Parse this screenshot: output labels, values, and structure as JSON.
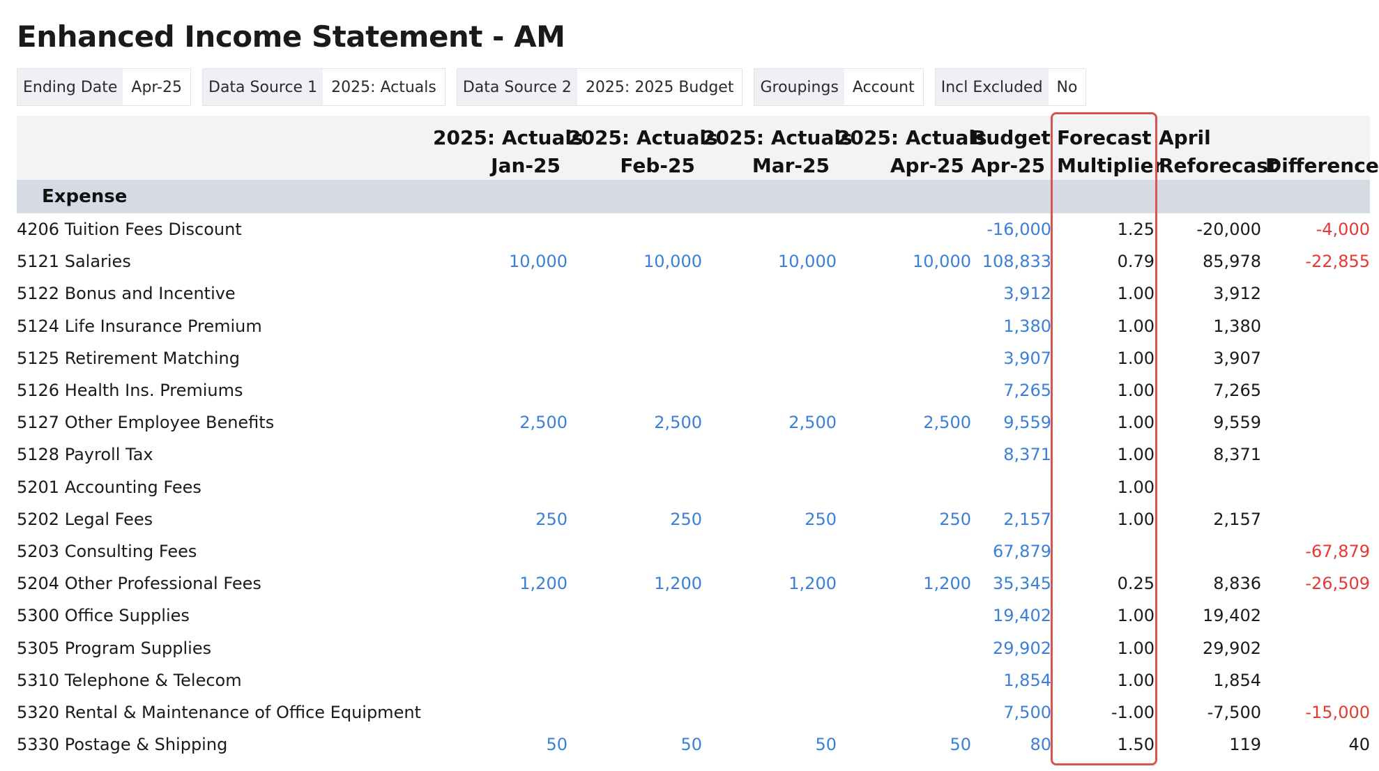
{
  "title": "Enhanced Income Statement - AM",
  "filters": [
    {
      "label": "Ending Date",
      "value": "Apr-25"
    },
    {
      "label": "Data Source 1",
      "value": "2025: Actuals"
    },
    {
      "label": "Data Source 2",
      "value": "2025: 2025 Budget"
    },
    {
      "label": "Groupings",
      "value": "Account"
    },
    {
      "label": "Incl Excluded",
      "value": "No"
    }
  ],
  "columns": [
    {
      "line1": "",
      "line2": ""
    },
    {
      "line1": "2025: Actuals",
      "line2": "Jan-25"
    },
    {
      "line1": "2025: Actuals",
      "line2": "Feb-25"
    },
    {
      "line1": "2025: Actuals",
      "line2": "Mar-25"
    },
    {
      "line1": "2025: Actuals",
      "line2": "Apr-25"
    },
    {
      "line1": "Budget",
      "line2": "Apr-25"
    },
    {
      "line1": "Forecast",
      "line2": "Multiplier"
    },
    {
      "line1": "April",
      "line2": "Reforecast"
    },
    {
      "line1": "",
      "line2": "Difference"
    }
  ],
  "group": "Expense",
  "colors": {
    "link": "#3a7fd9",
    "negative": "#e53935",
    "highlight": "#d9534f",
    "group_bg": "#d5dae3"
  },
  "rows": [
    {
      "account": "4206 Tuition Fees Discount",
      "jan": "",
      "feb": "",
      "mar": "",
      "apr": "",
      "budget": "-16,000",
      "multiplier": "1.25",
      "reforecast": "-20,000",
      "difference": "-4,000"
    },
    {
      "account": "5121 Salaries",
      "jan": "10,000",
      "feb": "10,000",
      "mar": "10,000",
      "apr": "10,000",
      "budget": "108,833",
      "multiplier": "0.79",
      "reforecast": "85,978",
      "difference": "-22,855"
    },
    {
      "account": "5122 Bonus and Incentive",
      "jan": "",
      "feb": "",
      "mar": "",
      "apr": "",
      "budget": "3,912",
      "multiplier": "1.00",
      "reforecast": "3,912",
      "difference": ""
    },
    {
      "account": "5124 Life Insurance Premium",
      "jan": "",
      "feb": "",
      "mar": "",
      "apr": "",
      "budget": "1,380",
      "multiplier": "1.00",
      "reforecast": "1,380",
      "difference": ""
    },
    {
      "account": "5125 Retirement Matching",
      "jan": "",
      "feb": "",
      "mar": "",
      "apr": "",
      "budget": "3,907",
      "multiplier": "1.00",
      "reforecast": "3,907",
      "difference": ""
    },
    {
      "account": "5126 Health Ins. Premiums",
      "jan": "",
      "feb": "",
      "mar": "",
      "apr": "",
      "budget": "7,265",
      "multiplier": "1.00",
      "reforecast": "7,265",
      "difference": ""
    },
    {
      "account": "5127 Other Employee Benefits",
      "jan": "2,500",
      "feb": "2,500",
      "mar": "2,500",
      "apr": "2,500",
      "budget": "9,559",
      "multiplier": "1.00",
      "reforecast": "9,559",
      "difference": ""
    },
    {
      "account": "5128 Payroll Tax",
      "jan": "",
      "feb": "",
      "mar": "",
      "apr": "",
      "budget": "8,371",
      "multiplier": "1.00",
      "reforecast": "8,371",
      "difference": ""
    },
    {
      "account": "5201 Accounting Fees",
      "jan": "",
      "feb": "",
      "mar": "",
      "apr": "",
      "budget": "",
      "multiplier": "1.00",
      "reforecast": "",
      "difference": ""
    },
    {
      "account": "5202 Legal Fees",
      "jan": "250",
      "feb": "250",
      "mar": "250",
      "apr": "250",
      "budget": "2,157",
      "multiplier": "1.00",
      "reforecast": "2,157",
      "difference": ""
    },
    {
      "account": "5203 Consulting Fees",
      "jan": "",
      "feb": "",
      "mar": "",
      "apr": "",
      "budget": "67,879",
      "multiplier": "",
      "reforecast": "",
      "difference": "-67,879"
    },
    {
      "account": "5204 Other Professional Fees",
      "jan": "1,200",
      "feb": "1,200",
      "mar": "1,200",
      "apr": "1,200",
      "budget": "35,345",
      "multiplier": "0.25",
      "reforecast": "8,836",
      "difference": "-26,509"
    },
    {
      "account": "5300 Office Supplies",
      "jan": "",
      "feb": "",
      "mar": "",
      "apr": "",
      "budget": "19,402",
      "multiplier": "1.00",
      "reforecast": "19,402",
      "difference": ""
    },
    {
      "account": "5305 Program Supplies",
      "jan": "",
      "feb": "",
      "mar": "",
      "apr": "",
      "budget": "29,902",
      "multiplier": "1.00",
      "reforecast": "29,902",
      "difference": ""
    },
    {
      "account": "5310 Telephone & Telecom",
      "jan": "",
      "feb": "",
      "mar": "",
      "apr": "",
      "budget": "1,854",
      "multiplier": "1.00",
      "reforecast": "1,854",
      "difference": ""
    },
    {
      "account": "5320 Rental & Maintenance of Office Equipment",
      "jan": "",
      "feb": "",
      "mar": "",
      "apr": "",
      "budget": "7,500",
      "multiplier": "-1.00",
      "reforecast": "-7,500",
      "difference": "-15,000"
    },
    {
      "account": "5330 Postage & Shipping",
      "jan": "50",
      "feb": "50",
      "mar": "50",
      "apr": "50",
      "budget": "80",
      "multiplier": "1.50",
      "reforecast": "119",
      "difference": "40"
    }
  ]
}
